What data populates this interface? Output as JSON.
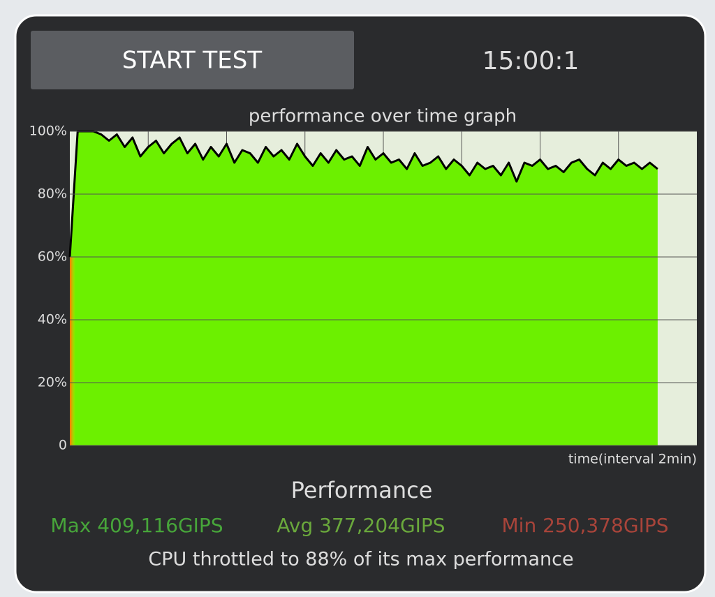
{
  "controls": {
    "button": "START TEST",
    "timer": "15:00:1"
  },
  "chart_data": {
    "type": "area",
    "title": "performance over time graph",
    "x_label": "time(interval 2min)",
    "x": [
      0,
      0.2,
      0.4,
      0.6,
      0.8,
      1,
      1.2,
      1.4,
      1.6,
      1.8,
      2,
      2.2,
      2.4,
      2.6,
      2.8,
      3,
      3.2,
      3.4,
      3.6,
      3.8,
      4,
      4.2,
      4.4,
      4.6,
      4.8,
      5,
      5.2,
      5.4,
      5.6,
      5.8,
      6,
      6.2,
      6.4,
      6.6,
      6.8,
      7,
      7.2,
      7.4,
      7.6,
      7.8,
      8,
      8.2,
      8.4,
      8.6,
      8.8,
      9,
      9.2,
      9.4,
      9.6,
      9.8,
      10,
      10.2,
      10.4,
      10.6,
      10.8,
      11,
      11.2,
      11.4,
      11.6,
      11.8,
      12,
      12.2,
      12.4,
      12.6,
      12.8,
      13,
      13.2,
      13.4,
      13.6,
      13.8,
      14,
      14.2,
      14.4,
      14.6,
      14.8,
      15
    ],
    "series": [
      {
        "color": "#6cf000",
        "line_color": "#000000",
        "values": [
          60,
          100,
          100,
          100,
          99,
          97,
          99,
          95,
          98,
          92,
          95,
          97,
          93,
          96,
          98,
          93,
          96,
          91,
          95,
          92,
          96,
          90,
          94,
          93,
          90,
          95,
          92,
          94,
          91,
          96,
          92,
          89,
          93,
          90,
          94,
          91,
          92,
          89,
          95,
          91,
          93,
          90,
          91,
          88,
          93,
          89,
          90,
          92,
          88,
          91,
          89,
          86,
          90,
          88,
          89,
          86,
          90,
          84,
          90,
          89,
          91,
          88,
          89,
          87,
          90,
          91,
          88,
          86,
          90,
          88,
          91,
          89,
          90,
          88,
          90,
          88
        ]
      }
    ],
    "xlim": [
      0,
      16
    ],
    "xticks": [
      2,
      4,
      6,
      8,
      10,
      12,
      14
    ],
    "ylim": [
      0,
      100
    ],
    "yticks": [
      0,
      {
        "value": 20,
        "label": "20%"
      },
      {
        "value": 40,
        "label": "40%"
      },
      {
        "value": 60,
        "label": "60%"
      },
      {
        "value": 80,
        "label": "80%"
      },
      {
        "value": 100,
        "label": "100%"
      }
    ],
    "grid": true
  },
  "summary": {
    "heading": "Performance",
    "max": "Max 409,116GIPS",
    "avg": "Avg 377,204GIPS",
    "min": "Min 250,378GIPS",
    "note": "CPU throttled to 88% of its max performance"
  }
}
